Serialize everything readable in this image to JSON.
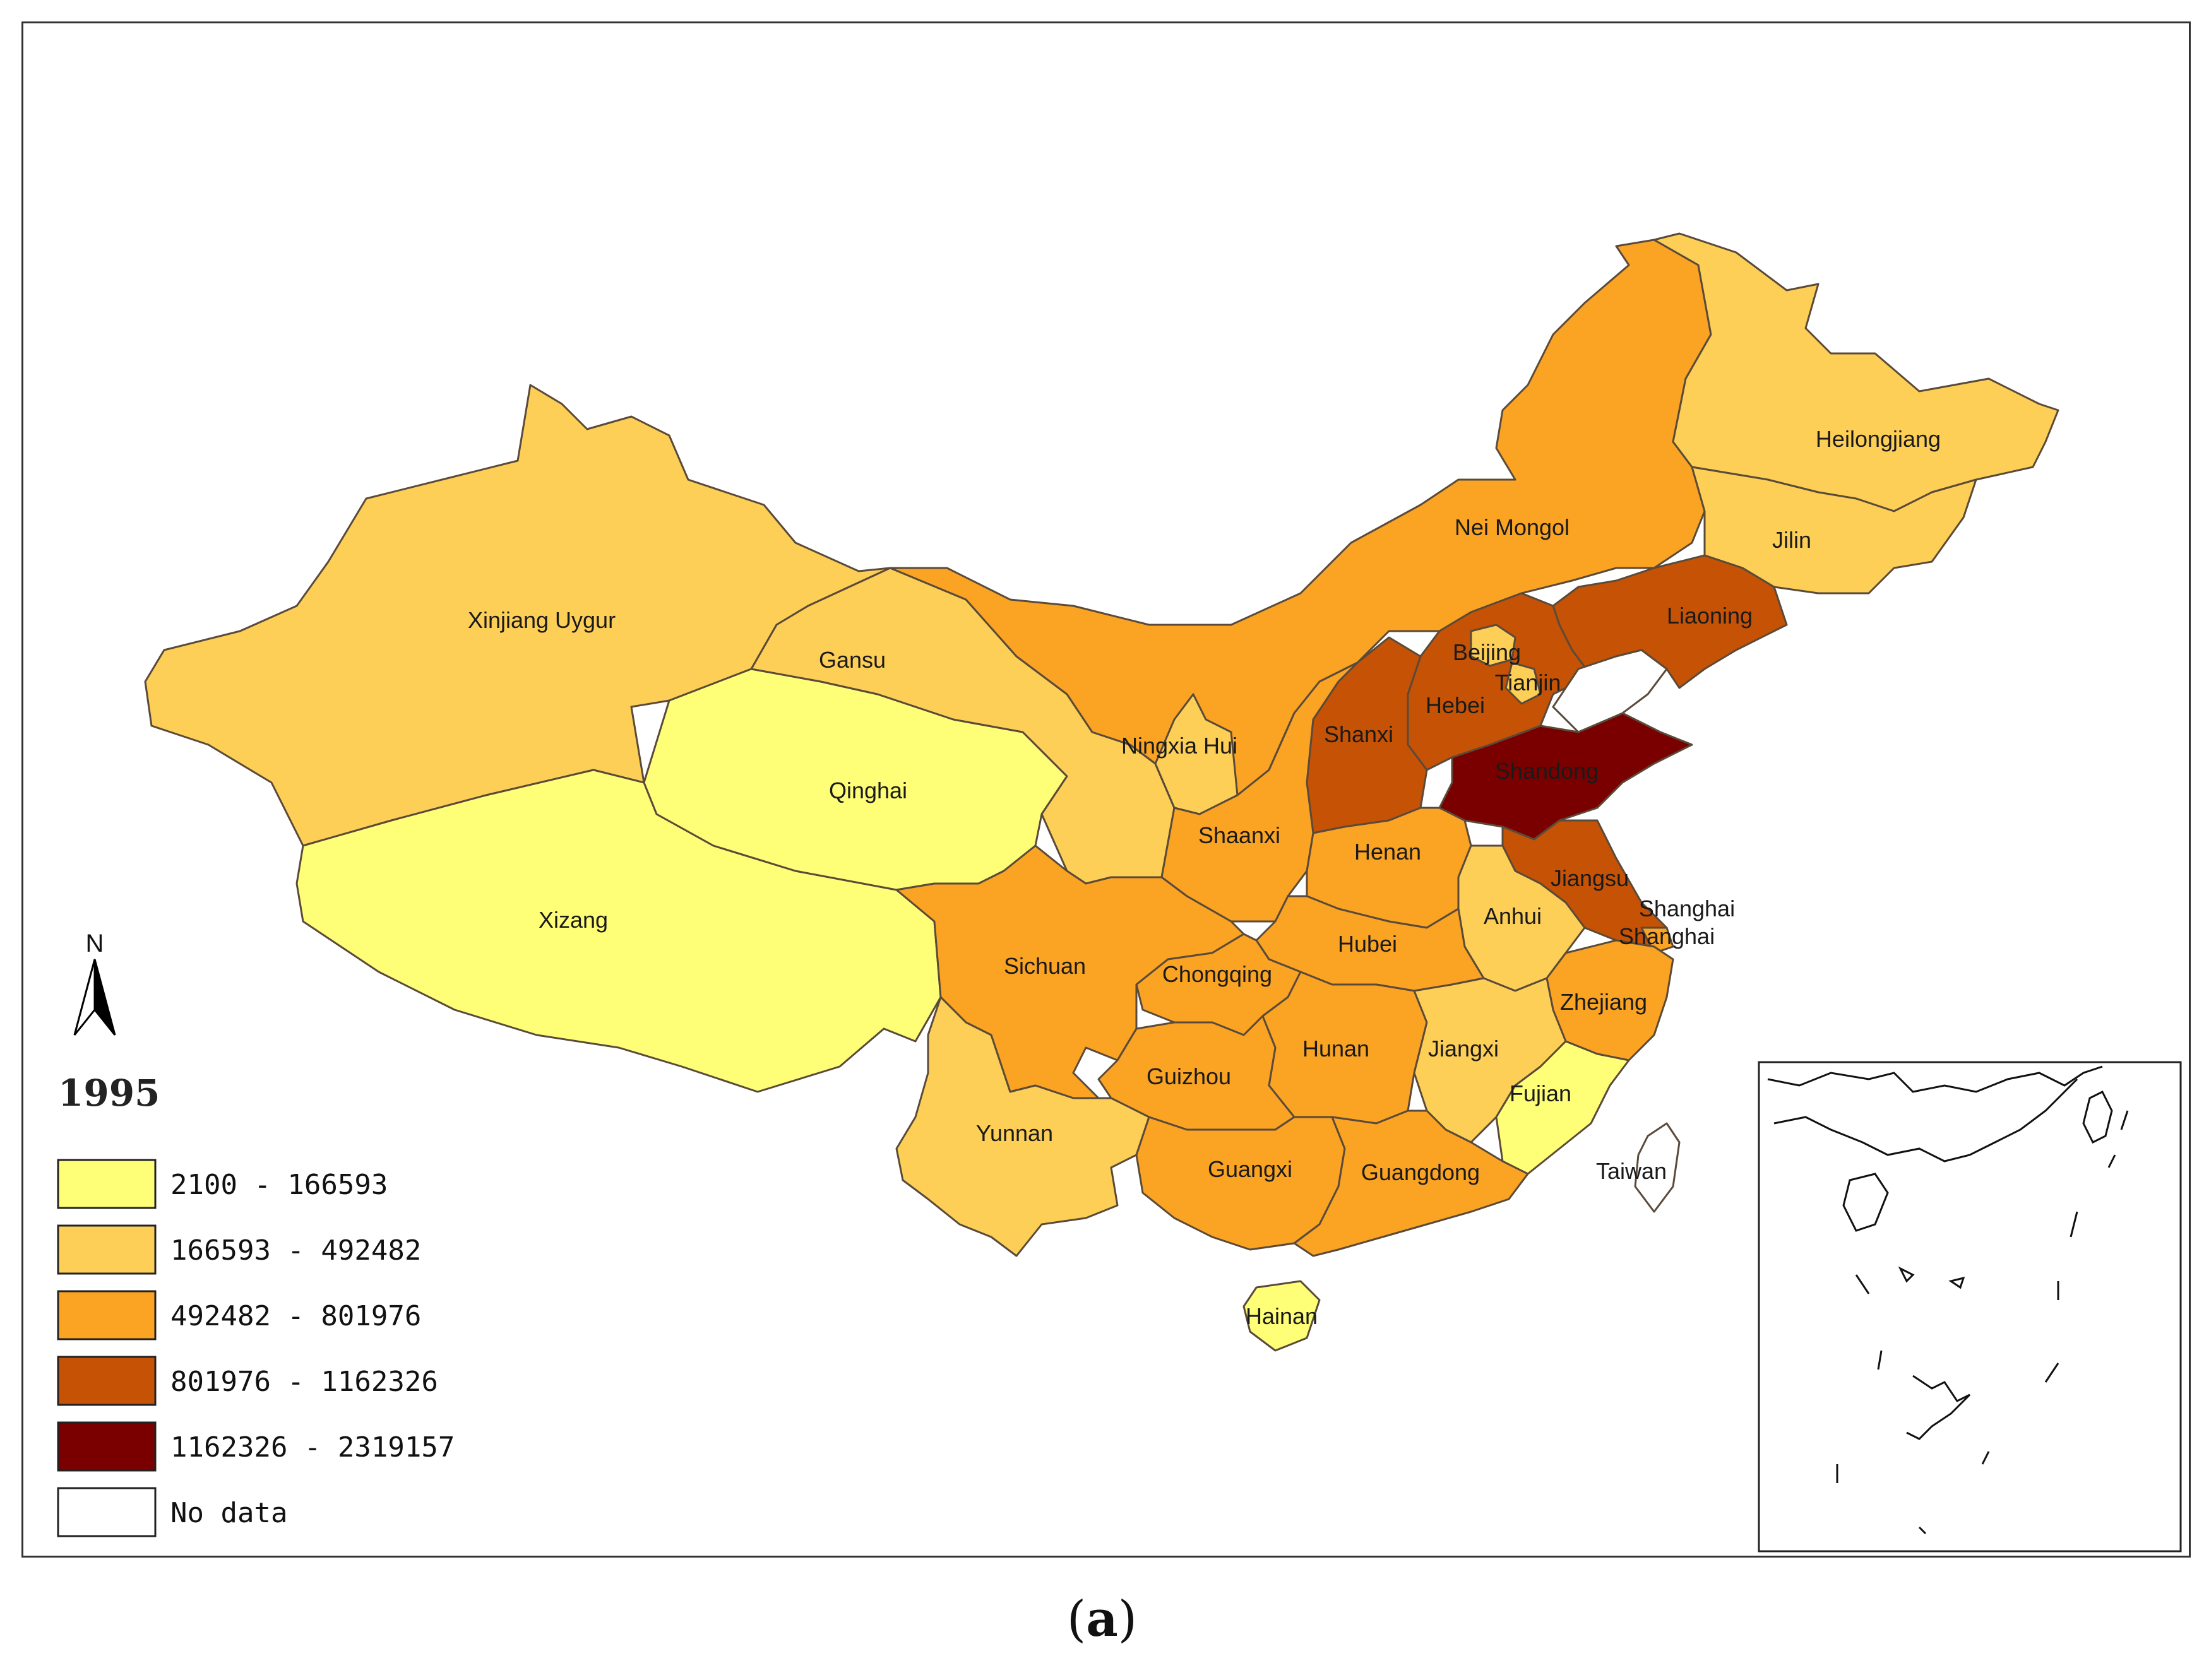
{
  "year": "1995",
  "caption": {
    "open": "(",
    "letter": "a",
    "close": ")"
  },
  "north_arrow": "N",
  "colors": {
    "class1": "#ffff77",
    "class2": "#fecf56",
    "class3": "#fba323",
    "class4": "#c55205",
    "class5": "#7a0000",
    "nodata": "#ffffff"
  },
  "legend": [
    {
      "label": "2100 - 166593",
      "class": "class1"
    },
    {
      "label": "166593 - 492482",
      "class": "class2"
    },
    {
      "label": "492482 - 801976",
      "class": "class3"
    },
    {
      "label": "801976 - 1162326",
      "class": "class4"
    },
    {
      "label": "1162326 - 2319157",
      "class": "class5"
    },
    {
      "label": "No data",
      "class": "nodata"
    }
  ],
  "provinces": {
    "xinjiang": "Xinjiang Uygur",
    "xizang": "Xizang",
    "qinghai": "Qinghai",
    "gansu": "Gansu",
    "neimongol": "Nei Mongol",
    "heilongjiang": "Heilongjiang",
    "jilin": "Jilin",
    "liaoning": "Liaoning",
    "beijing": "Beijing",
    "tianjin": "Tianjin",
    "hebei": "Hebei",
    "shanxi": "Shanxi",
    "shandong": "Shandong",
    "ningxia": "Ningxia Hui",
    "shaanxi": "Shaanxi",
    "henan": "Henan",
    "jiangsu": "Jiangsu",
    "shanghai": "Shanghai",
    "anhui": "Anhui",
    "hubei": "Hubei",
    "sichuan": "Sichuan",
    "chongqing": "Chongqing",
    "zhejiang": "Zhejiang",
    "hunan": "Hunan",
    "jiangxi": "Jiangxi",
    "guizhou": "Guizhou",
    "fujian": "Fujian",
    "yunnan": "Yunnan",
    "guangxi": "Guangxi",
    "guangdong": "Guangdong",
    "taiwan": "Taiwan",
    "hainan": "Hainan"
  },
  "province_class": {
    "xinjiang": "class2",
    "xizang": "class1",
    "qinghai": "class1",
    "gansu": "class2",
    "neimongol": "class3",
    "heilongjiang": "class2",
    "jilin": "class2",
    "liaoning": "class4",
    "beijing": "class2",
    "tianjin": "class2",
    "hebei": "class4",
    "shanxi": "class4",
    "shandong": "class5",
    "ningxia": "class2",
    "shaanxi": "class3",
    "henan": "class3",
    "jiangsu": "class4",
    "shanghai": "class3",
    "anhui": "class2",
    "hubei": "class3",
    "sichuan": "class3",
    "chongqing": "class3",
    "zhejiang": "class3",
    "hunan": "class3",
    "jiangxi": "class2",
    "guizhou": "class3",
    "fujian": "class1",
    "yunnan": "class2",
    "guangxi": "class3",
    "guangdong": "class3",
    "taiwan": "nodata",
    "hainan": "class1"
  }
}
